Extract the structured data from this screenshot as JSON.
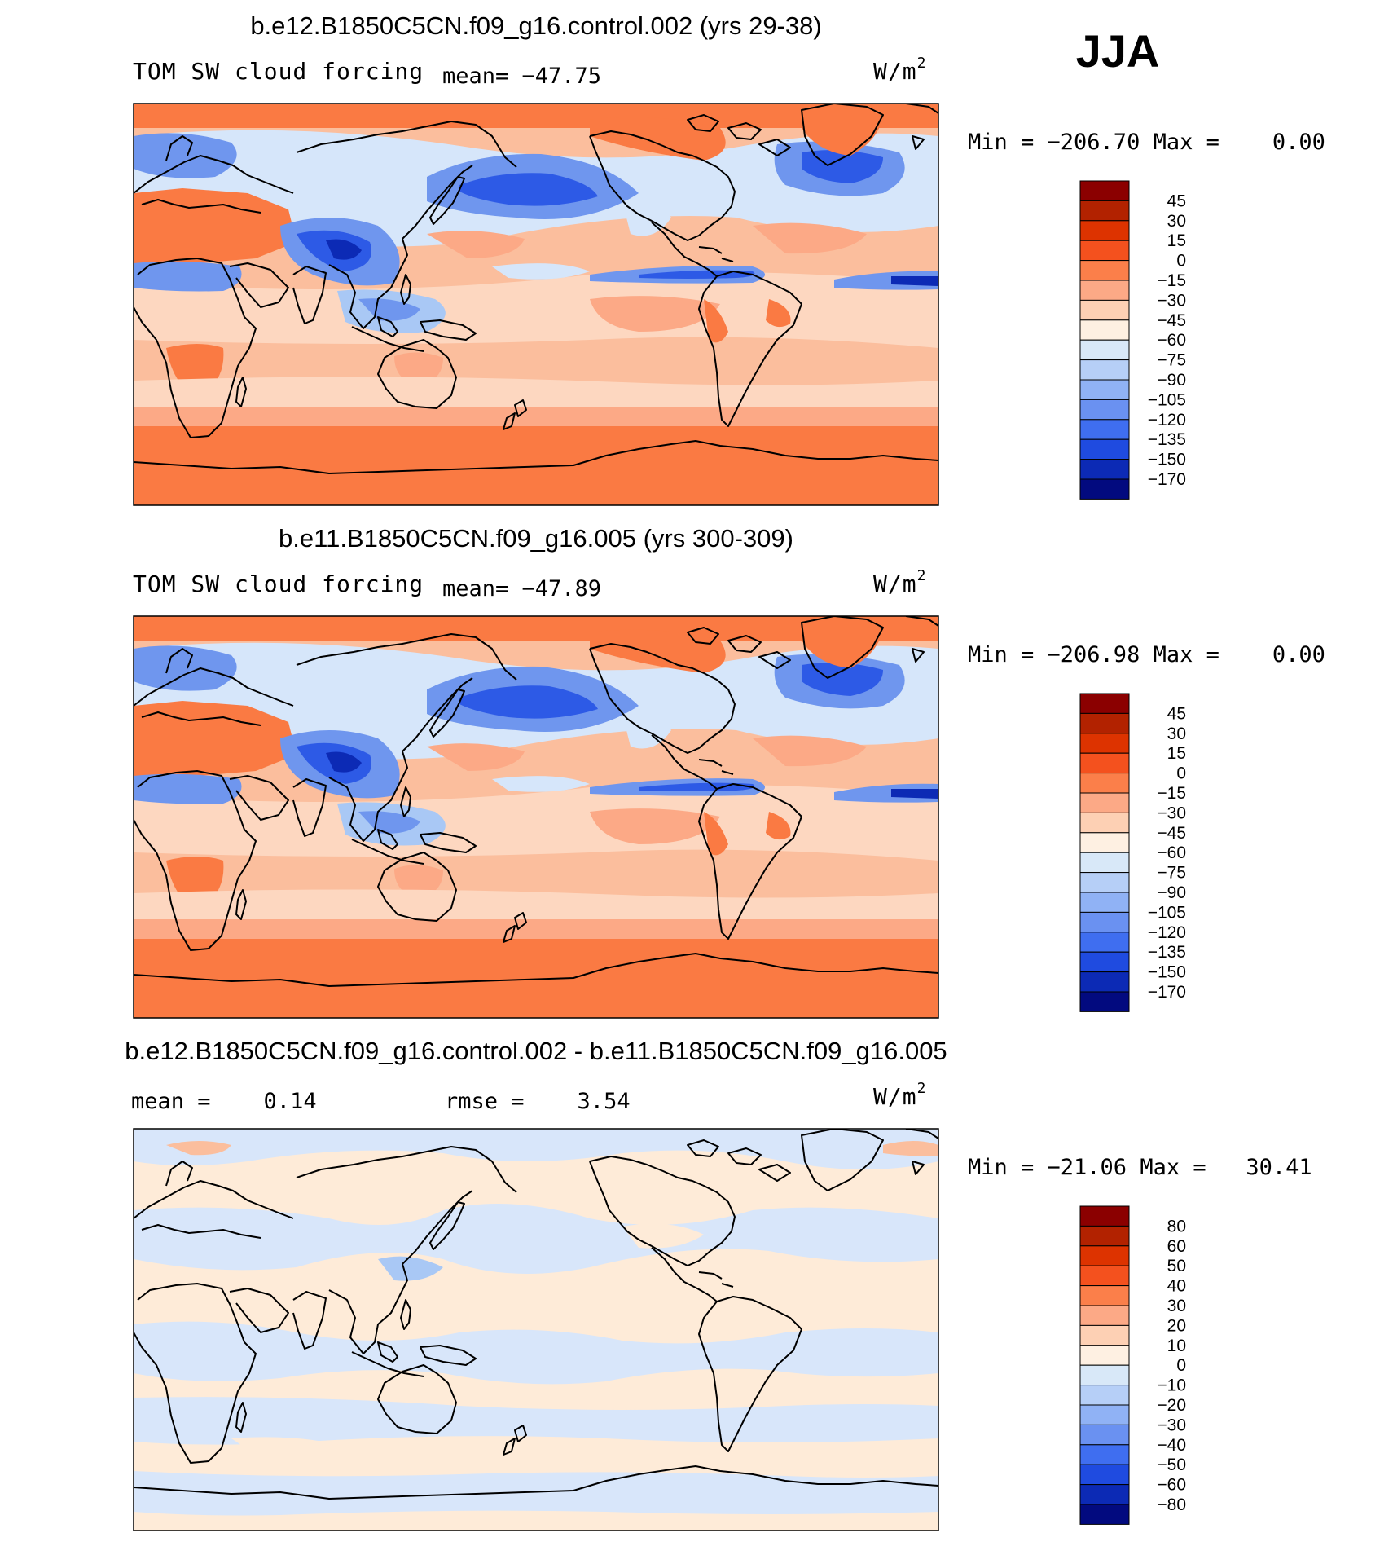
{
  "season": "JJA",
  "panels": [
    {
      "title": "b.e12.B1850C5CN.f09_g16.control.002 (yrs 29-38)",
      "variable": "TOM SW cloud forcing",
      "stat": "mean= −47.75",
      "units_base": "W/m",
      "units_exp": "2",
      "minmax": "Min = −206.70 Max =    0.00"
    },
    {
      "title": "b.e11.B1850C5CN.f09_g16.005 (yrs 300-309)",
      "variable": "TOM SW cloud forcing",
      "stat": "mean= −47.89",
      "units_base": "W/m",
      "units_exp": "2",
      "minmax": "Min = −206.98 Max =    0.00"
    },
    {
      "title": "b.e12.B1850C5CN.f09_g16.control.002 - b.e11.B1850C5CN.f09_g16.005",
      "stat_left": "mean =    0.14",
      "stat_mid": "rmse =    3.54",
      "units_base": "W/m",
      "units_exp": "2",
      "minmax": "Min = −21.06 Max =   30.41"
    }
  ],
  "colorbar_abs": {
    "labels": [
      "45",
      "30",
      "15",
      "0",
      "−15",
      "−30",
      "−45",
      "−60",
      "−75",
      "−90",
      "−105",
      "−120",
      "−135",
      "−150",
      "−170"
    ],
    "colors": [
      "#8b0000",
      "#b22200",
      "#dd3300",
      "#f4511e",
      "#fb7f4a",
      "#fca986",
      "#fdd0b4",
      "#fef0e2",
      "#d8e8f8",
      "#b6cff7",
      "#90b2f5",
      "#6a91f1",
      "#3f6ef0",
      "#1f4be0",
      "#0c2ab5",
      "#020a7f"
    ]
  },
  "colorbar_diff": {
    "labels": [
      "80",
      "60",
      "50",
      "40",
      "30",
      "20",
      "10",
      "0",
      "−10",
      "−20",
      "−30",
      "−40",
      "−50",
      "−60",
      "−80"
    ],
    "colors": [
      "#8b0000",
      "#b22200",
      "#dd3300",
      "#f4511e",
      "#fb7f4a",
      "#fca986",
      "#fdd0b4",
      "#fef0e2",
      "#d8e8f8",
      "#b6cff7",
      "#90b2f5",
      "#6a91f1",
      "#3f6ef0",
      "#1f4be0",
      "#0c2ab5",
      "#020a7f"
    ]
  },
  "colors": {
    "polar_orange": "#fa7a43",
    "subtropic_peach": "#fbbe9d",
    "tropics_pale": "#fdd7c0",
    "pale_blue": "#d6e6fa",
    "light_blue": "#a9c8f5",
    "mid_blue": "#6f96ee",
    "deep_blue": "#2d5ae6",
    "navy": "#0c2ab5",
    "diff_base": "#feebd8",
    "diff_blue": "#d8e6fa"
  }
}
